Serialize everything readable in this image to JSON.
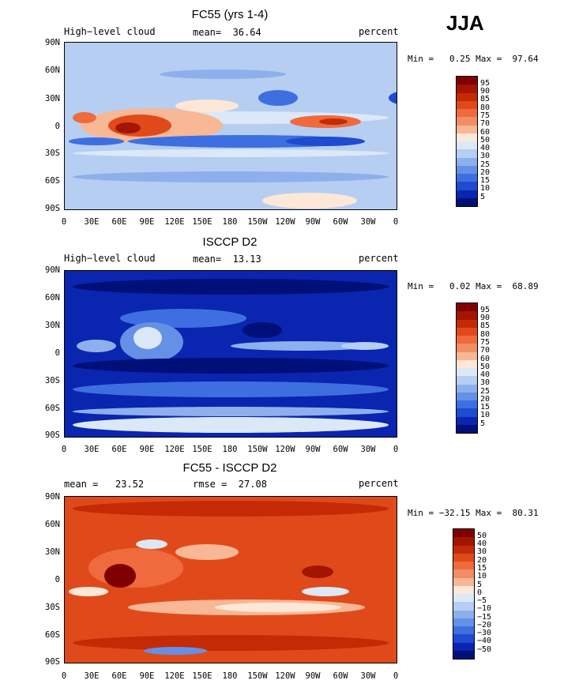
{
  "season": "JJA",
  "panels": [
    {
      "title": "FC55 (yrs 1-4)",
      "left_label": "High−level cloud",
      "mean_label": "mean=  36.64",
      "unit": "percent",
      "minmax": "Min =   0.25 Max =  97.64",
      "colorbar_levels": [
        "95",
        "90",
        "85",
        "80",
        "75",
        "70",
        "60",
        "50",
        "40",
        "30",
        "25",
        "20",
        "15",
        "10",
        "5"
      ],
      "colors": [
        "#7f0000",
        "#a31500",
        "#c52a06",
        "#e04a1b",
        "#ef6a3c",
        "#f38d66",
        "#f8b795",
        "#fde8d7",
        "#dbe8f8",
        "#b6cef2",
        "#8db0ec",
        "#6490e6",
        "#3e6fe0",
        "#1e4bd0",
        "#0a25b0",
        "#001078"
      ]
    },
    {
      "title": "ISCCP D2",
      "left_label": "High−level cloud",
      "mean_label": "mean=  13.13",
      "unit": "percent",
      "minmax": "Min =   0.02 Max =  68.89",
      "colorbar_levels": [
        "95",
        "90",
        "85",
        "80",
        "75",
        "70",
        "60",
        "50",
        "40",
        "30",
        "25",
        "20",
        "15",
        "10",
        "5"
      ],
      "colors": [
        "#7f0000",
        "#a31500",
        "#c52a06",
        "#e04a1b",
        "#ef6a3c",
        "#f38d66",
        "#f8b795",
        "#fde8d7",
        "#dbe8f8",
        "#b6cef2",
        "#8db0ec",
        "#6490e6",
        "#3e6fe0",
        "#1e4bd0",
        "#0a25b0",
        "#001078"
      ]
    },
    {
      "title": "FC55 - ISCCP D2",
      "left_label": "mean =   23.52",
      "mean_label": "rmse =  27.08",
      "unit": "percent",
      "minmax": "Min = −32.15 Max =  80.31",
      "colorbar_levels": [
        "50",
        "40",
        "30",
        "20",
        "15",
        "10",
        "5",
        "0",
        "−5",
        "−10",
        "−15",
        "−20",
        "−30",
        "−40",
        "−50"
      ],
      "colors": [
        "#7f0000",
        "#a31500",
        "#c52a06",
        "#e04a1b",
        "#ef6a3c",
        "#f38d66",
        "#f8b795",
        "#fde8d7",
        "#dbe8f8",
        "#b6cef2",
        "#8db0ec",
        "#6490e6",
        "#3e6fe0",
        "#1e4bd0",
        "#0a25b0",
        "#001078"
      ]
    }
  ],
  "lat_ticks": [
    "90N",
    "60N",
    "30N",
    "0",
    "30S",
    "60S",
    "90S"
  ],
  "lon_ticks": [
    "0",
    "30E",
    "60E",
    "90E",
    "120E",
    "150E",
    "180",
    "150W",
    "120W",
    "90W",
    "60W",
    "30W",
    "0"
  ]
}
